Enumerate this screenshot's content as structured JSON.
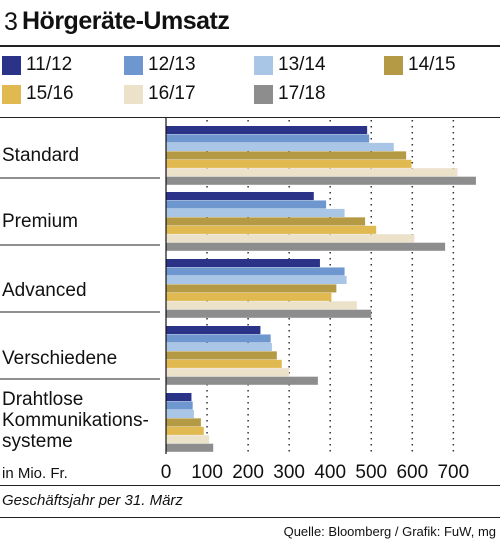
{
  "header": {
    "number": "3",
    "title": "Hörgeräte-Umsatz"
  },
  "chart_data": {
    "type": "bar",
    "orientation": "horizontal",
    "categories": [
      "Standard",
      "Premium",
      "Advanced",
      "Verschiedene",
      "Drahtlose Kommunikations-systeme"
    ],
    "category_label_lines": [
      [
        "Standard"
      ],
      [
        "Premium"
      ],
      [
        "Advanced"
      ],
      [
        "Verschiedene"
      ],
      [
        "Drahtlose",
        "Kommunikations-",
        "systeme"
      ]
    ],
    "series": [
      {
        "name": "11/12",
        "color": "#2a3388",
        "values": [
          490,
          360,
          375,
          230,
          62
        ]
      },
      {
        "name": "12/13",
        "color": "#6f97cf",
        "values": [
          495,
          390,
          435,
          255,
          65
        ]
      },
      {
        "name": "13/14",
        "color": "#a9c6e6",
        "values": [
          555,
          435,
          440,
          258,
          68
        ]
      },
      {
        "name": "14/15",
        "color": "#b49a45",
        "values": [
          585,
          485,
          415,
          270,
          85
        ]
      },
      {
        "name": "15/16",
        "color": "#e0b951",
        "values": [
          598,
          512,
          403,
          282,
          92
        ]
      },
      {
        "name": "16/17",
        "color": "#ece1c9",
        "values": [
          710,
          605,
          465,
          300,
          105
        ]
      },
      {
        "name": "17/18",
        "color": "#8d8d8d",
        "values": [
          755,
          680,
          500,
          370,
          115
        ]
      }
    ],
    "x_ticks": [
      "0",
      "100",
      "200",
      "300",
      "400",
      "500",
      "600",
      "700"
    ],
    "xlim": [
      0,
      750
    ],
    "unit_label": "in Mio. Fr.",
    "grid": "vertical dotted",
    "legend_position": "top"
  },
  "footnote": "Geschäftsjahr per 31. März",
  "source": "Quelle: Bloomberg / Grafik: FuW, mg"
}
